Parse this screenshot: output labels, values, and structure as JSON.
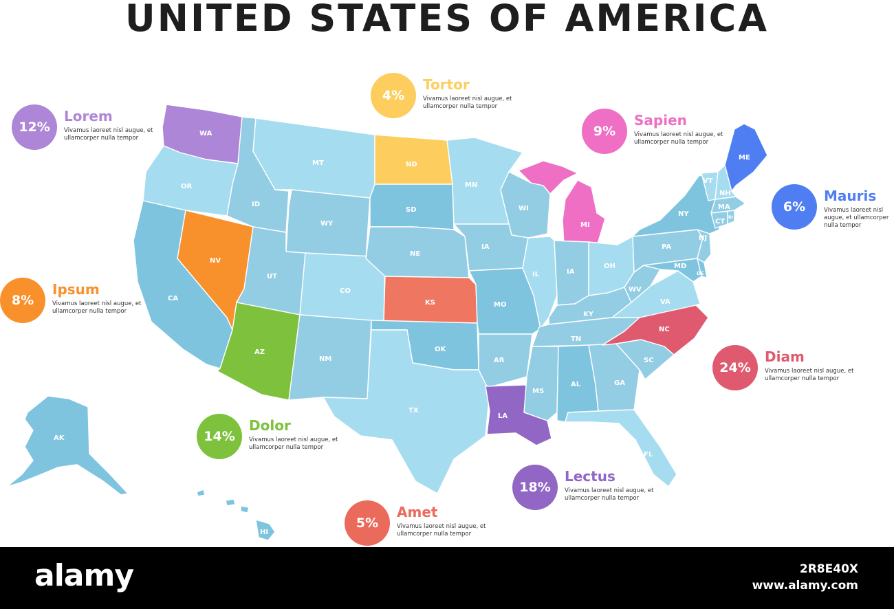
{
  "title": "UNITED STATES OF AMERICA",
  "colors": {
    "default_state": "#93cde4",
    "light_state": "#a6dcef",
    "mid_state": "#7fc4df",
    "purple_light": "#ad86d8",
    "yellow": "#fdcd5e",
    "pink": "#ee6fc4",
    "blue": "#4f7df2",
    "orange": "#f8902c",
    "green": "#7dc13c",
    "coral": "#ef7660",
    "crimson": "#df5a6f",
    "violet": "#9166c4",
    "red": "#ea6b5c"
  },
  "callouts": [
    {
      "id": "lorem",
      "percent": "12%",
      "label": "Lorem",
      "desc": "Vivamus laoreet nisl augue, et ullamcorper nulla tempor",
      "color": "#ad86d8"
    },
    {
      "id": "tortor",
      "percent": "4%",
      "label": "Tortor",
      "desc": "Vivamus laoreet nisl augue, et ullamcorper nulla tempor",
      "color": "#fdcd5e"
    },
    {
      "id": "sapien",
      "percent": "9%",
      "label": "Sapien",
      "desc": "Vivamus laoreet nisl augue, et ullamcorper nulla tempor",
      "color": "#ee6fc4"
    },
    {
      "id": "mauris",
      "percent": "6%",
      "label": "Mauris",
      "desc": "Vivamus laoreet nisl augue, et ullamcorper nulla tempor",
      "color": "#4f7df2"
    },
    {
      "id": "ipsum",
      "percent": "8%",
      "label": "Ipsum",
      "desc": "Vivamus laoreet nisl augue, et ullamcorper nulla tempor",
      "color": "#f8902c"
    },
    {
      "id": "diam",
      "percent": "24%",
      "label": "Diam",
      "desc": "Vivamus laoreet nisl augue, et ullamcorper nulla tempor",
      "color": "#df5a6f"
    },
    {
      "id": "dolor",
      "percent": "14%",
      "label": "Dolor",
      "desc": "Vivamus laoreet nisl augue, et ullamcorper nulla tempor",
      "color": "#7dc13c"
    },
    {
      "id": "lectus",
      "percent": "18%",
      "label": "Lectus",
      "desc": "Vivamus laoreet nisl augue, et ullamcorper nulla tempor",
      "color": "#9166c4"
    },
    {
      "id": "amet",
      "percent": "5%",
      "label": "Amet",
      "desc": "Vivamus laoreet nisl augue, et ullamcorper nulla tempor",
      "color": "#ea6b5c"
    }
  ],
  "states": {
    "WA": "WA",
    "OR": "OR",
    "CA": "CA",
    "ID": "ID",
    "NV": "NV",
    "MT": "MT",
    "WY": "WY",
    "UT": "UT",
    "AZ": "AZ",
    "CO": "CO",
    "NM": "NM",
    "ND": "ND",
    "SD": "SD",
    "NE": "NE",
    "KS": "KS",
    "OK": "OK",
    "TX": "TX",
    "MN": "MN",
    "IA": "IA",
    "MO": "MO",
    "AR": "AR",
    "LA": "LA",
    "WI": "WI",
    "IL": "IL",
    "MI": "MI",
    "IN": "IA",
    "OH": "OH",
    "KY": "KY",
    "TN": "TN",
    "MS": "MS",
    "AL": "AL",
    "GA": "GA",
    "FL": "FL",
    "SC": "SC",
    "NC": "NC",
    "VA": "VA",
    "WV": "WV",
    "PA": "PA",
    "NY": "NY",
    "MD": "MD",
    "DE": "DE",
    "NJ": "NJ",
    "CT": "CT",
    "RI": "RI",
    "MA": "MA",
    "VT": "VT",
    "NH": "NH",
    "ME": "ME",
    "AK": "AK",
    "HI": "HI"
  },
  "footer": {
    "logo": "alamy",
    "image_id": "2R8E40X",
    "site": "www.alamy.com"
  }
}
